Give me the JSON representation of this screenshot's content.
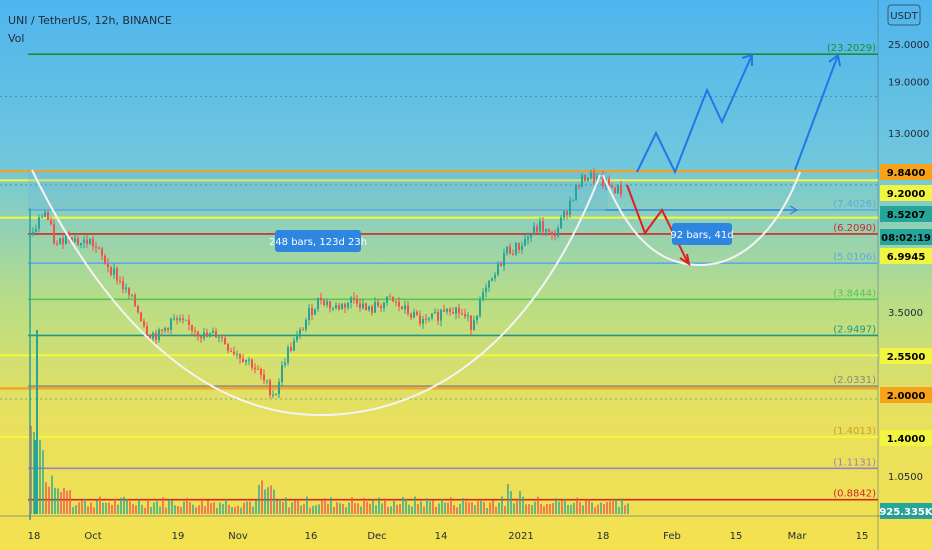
{
  "header": {
    "symbol": "UNI / TetherUS, 12h, BINANCE",
    "vol_label": "Vol"
  },
  "currency_badge": "USDT",
  "price_axis_ticks": [
    {
      "label": "25.0000",
      "value": 25.0
    },
    {
      "label": "19.0000",
      "value": 19.0
    },
    {
      "label": "13.0000",
      "value": 13.0
    },
    {
      "label": "3.5000",
      "value": 3.5
    },
    {
      "label": "1.0500",
      "value": 1.05
    }
  ],
  "price_badges": [
    {
      "label": "9.8400",
      "value": 9.84,
      "bg": "#f7a21b",
      "fg": "#000000"
    },
    {
      "label": "9.2000",
      "value": 9.2,
      "bg": "#f2f542",
      "fg": "#000000"
    },
    {
      "label": "8.5207",
      "value": 8.5207,
      "bg": "#26a69a",
      "fg": "#000000"
    },
    {
      "label": "08:02:19",
      "value": 8.0,
      "bg": "#26a69a",
      "fg": "#000000"
    },
    {
      "label": "6.9945",
      "value": 6.9945,
      "bg": "#f2f542",
      "fg": "#000000"
    },
    {
      "label": "2.5500",
      "value": 2.55,
      "bg": "#f2f542",
      "fg": "#000000"
    },
    {
      "label": "2.0000",
      "value": 2.0,
      "bg": "#f7a21b",
      "fg": "#000000"
    },
    {
      "label": "1.4000",
      "value": 1.4,
      "bg": "#f2f542",
      "fg": "#000000"
    },
    {
      "label": "925.335K",
      "value": 0.8,
      "bg": "#26a69a",
      "fg": "#ffffff"
    }
  ],
  "levels": [
    {
      "label": "(23.2029)",
      "value": 23.2029,
      "color": "#1b8f2e"
    },
    {
      "label": "(7.4026)",
      "value": 7.4026,
      "color": "#5aaae6"
    },
    {
      "label": "(6.2090)",
      "value": 6.209,
      "color": "#d02828"
    },
    {
      "label": "(5.0106)",
      "value": 5.0106,
      "color": "#5aaae6"
    },
    {
      "label": "(3.8444)",
      "value": 3.8444,
      "color": "#53c853"
    },
    {
      "label": "(2.9497)",
      "value": 2.9497,
      "color": "#1a9a86"
    },
    {
      "label": "(2.0331)",
      "value": 2.0331,
      "color": "#888888"
    },
    {
      "label": "(1.4013)",
      "value": 1.4013,
      "color": "#d0a020"
    },
    {
      "label": "(1.1131)",
      "value": 1.1131,
      "color": "#9a80c8"
    },
    {
      "label": "(0.8842)",
      "value": 0.8842,
      "color": "#d02828"
    }
  ],
  "extra_lines": [
    {
      "value": 9.84,
      "color": "#f7a21b"
    },
    {
      "value": 9.2,
      "color": "#f2f542"
    },
    {
      "value": 6.9945,
      "color": "#f2f542"
    },
    {
      "value": 2.55,
      "color": "#f2f542"
    },
    {
      "value": 2.0,
      "color": "#f7a21b"
    },
    {
      "value": 1.4,
      "color": "#f2f542"
    }
  ],
  "time_axis_ticks": [
    "18",
    "Oct",
    "19",
    "Nov",
    "16",
    "Dec",
    "14",
    "2021",
    "18",
    "Feb",
    "15",
    "Mar",
    "15"
  ],
  "range_labels": [
    "248 bars, 123d 23h",
    "92 bars, 41d"
  ],
  "chart_data": {
    "type": "candlestick",
    "title": "UNI / TetherUS, 12h, BINANCE",
    "y_scale": "log",
    "ylim": [
      0.75,
      33.6
    ],
    "x_tick_labels": [
      "18",
      "Oct",
      "19",
      "Nov",
      "16",
      "Dec",
      "14",
      "2021",
      "18",
      "Feb",
      "15",
      "Mar",
      "15"
    ],
    "series": [
      {
        "name": "close",
        "values": [
          6.2,
          7.4,
          5.6,
          6.3,
          5.8,
          5.9,
          5.2,
          4.7,
          4.1,
          3.6,
          3.0,
          2.95,
          3.3,
          3.2,
          3.1,
          2.9,
          3.0,
          2.7,
          2.55,
          2.4,
          2.1,
          1.9,
          2.6,
          2.9,
          3.5,
          3.9,
          3.6,
          3.7,
          3.9,
          3.5,
          3.7,
          3.8,
          3.6,
          3.4,
          3.2,
          3.4,
          3.7,
          3.5,
          3.2,
          3.9,
          4.5,
          5.5,
          5.6,
          6.1,
          6.6,
          6.0,
          7.0,
          8.5,
          9.6,
          9.2,
          8.8,
          8.52
        ]
      }
    ],
    "volume_label": "925.335K"
  }
}
